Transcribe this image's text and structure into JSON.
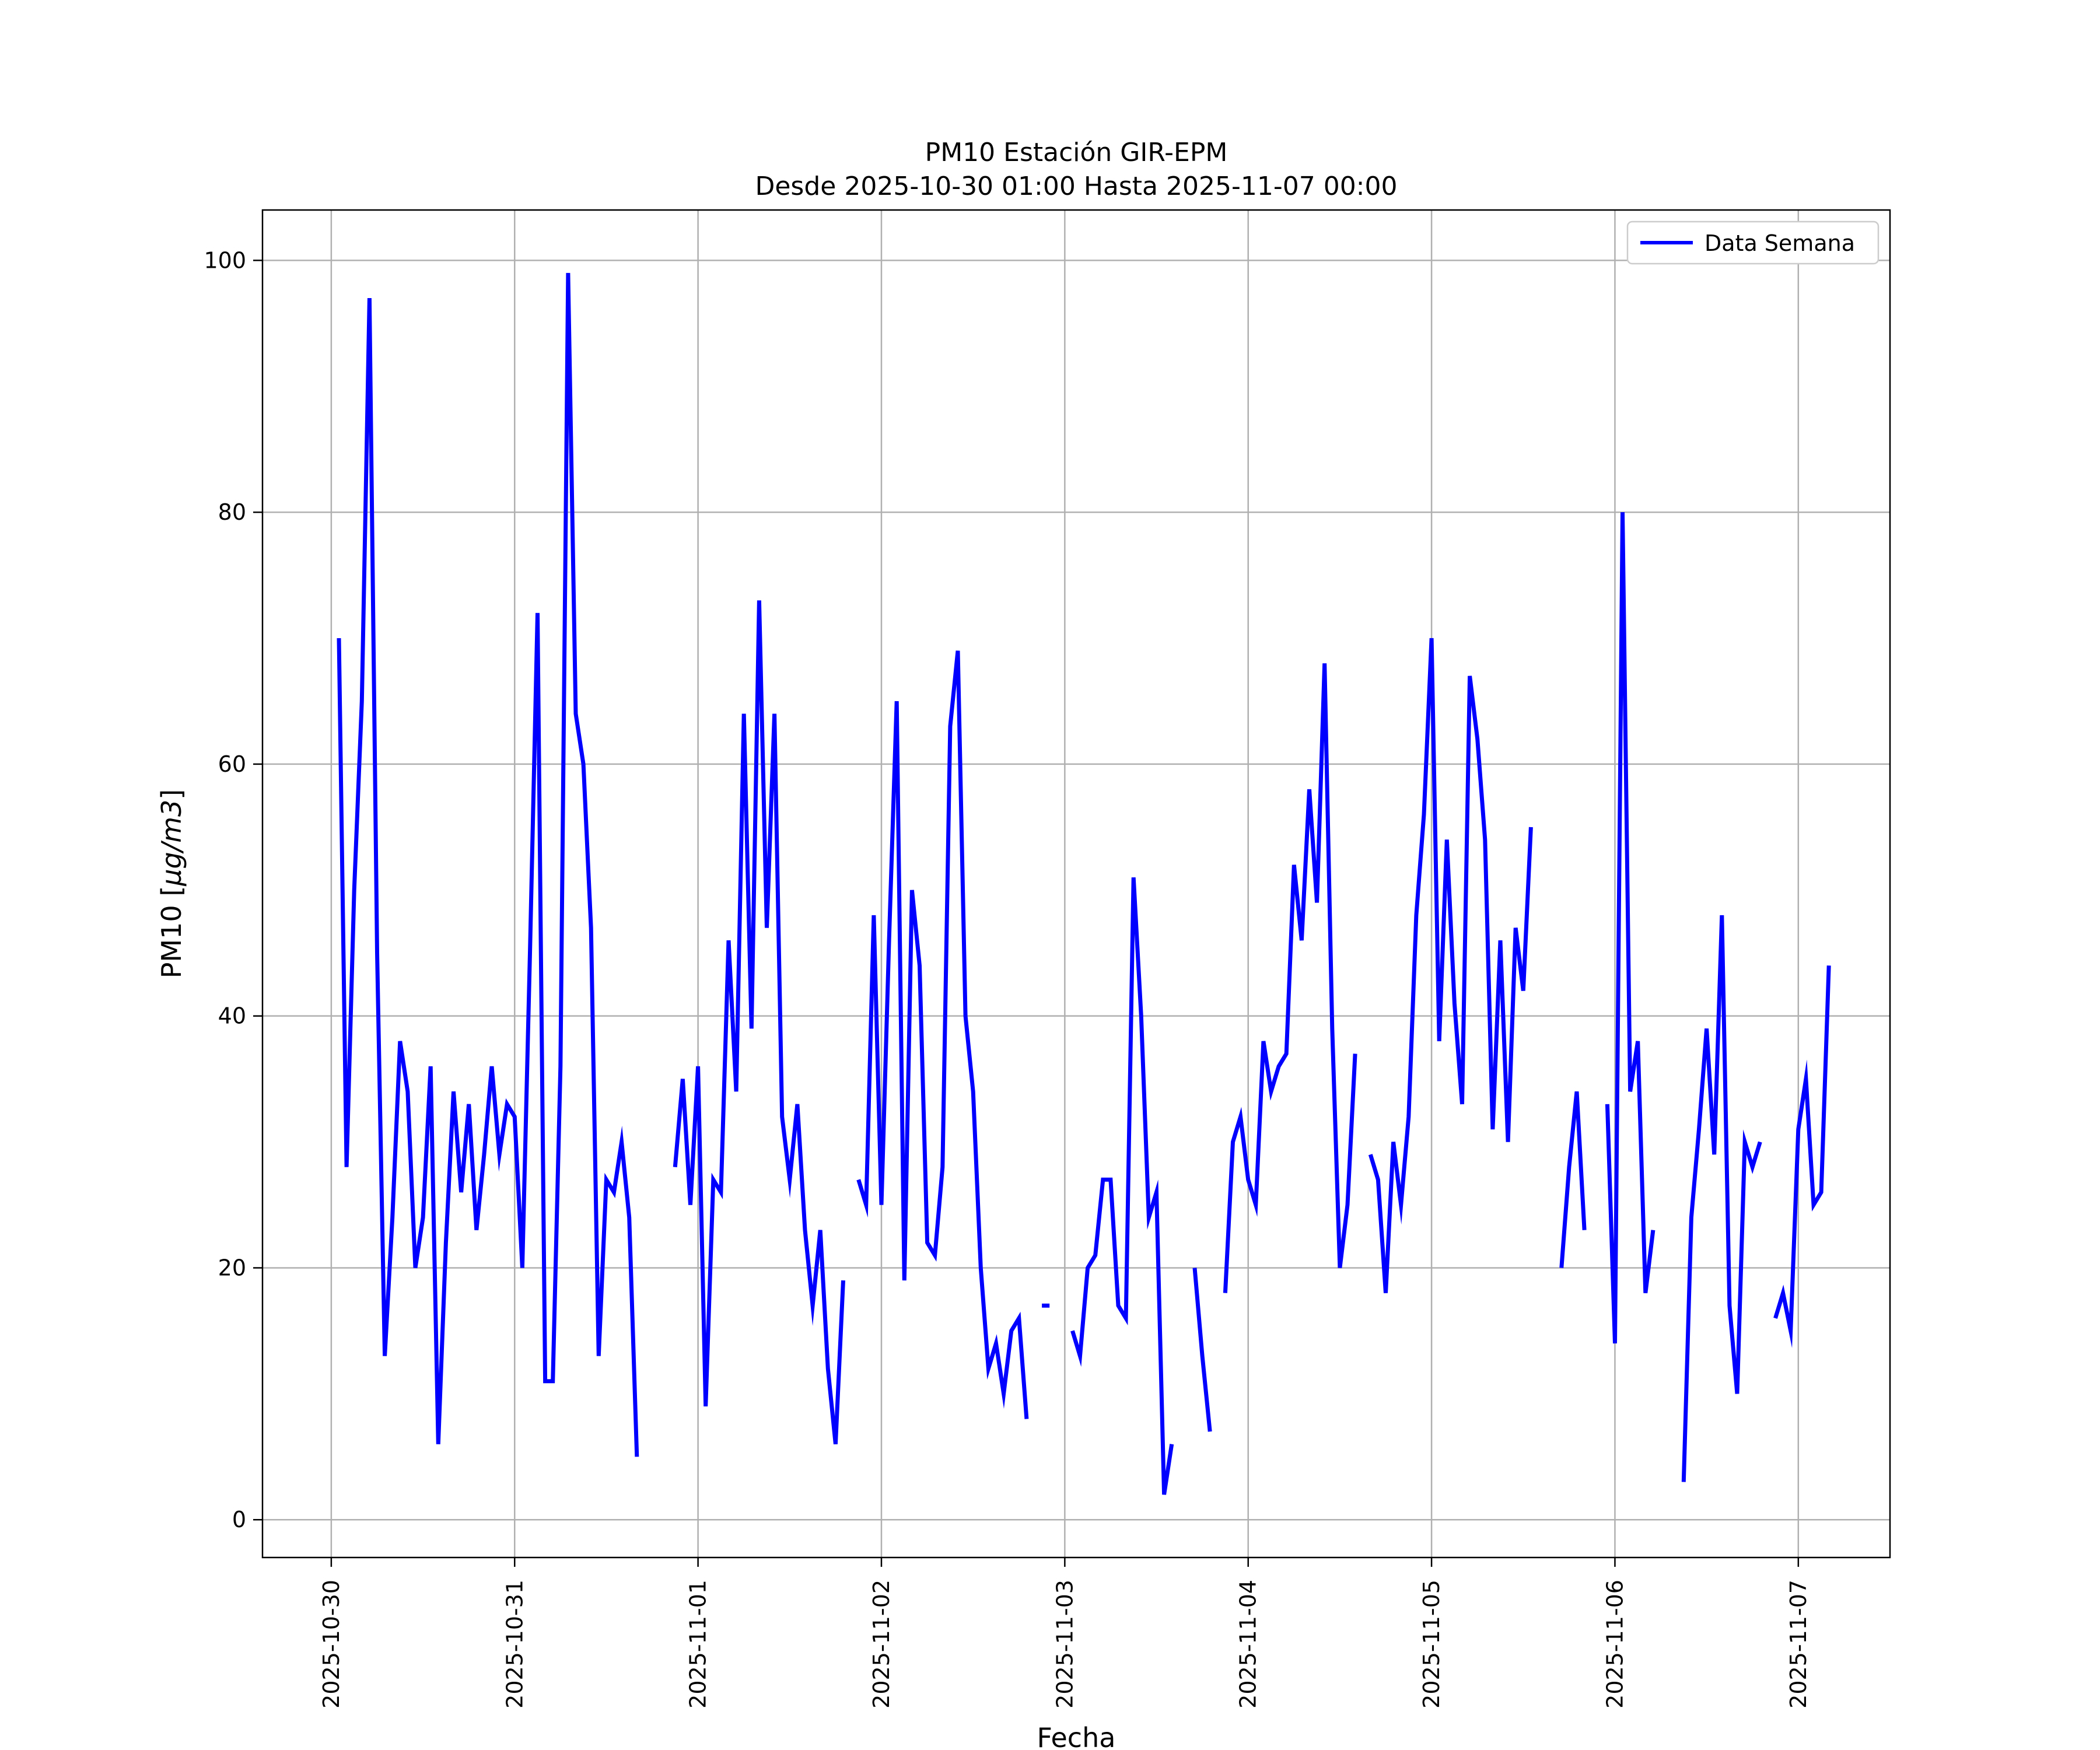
{
  "chart_data": {
    "type": "line",
    "title": "PM10 Estación GIR-EPM",
    "subtitle": "Desde 2025-10-30 01:00 Hasta 2025-11-07 00:00",
    "xlabel": "Fecha",
    "ylabel_prefix": "PM10 [",
    "ylabel_unit": "μg/m3",
    "ylabel_suffix": "]",
    "x_ticks": [
      "2025-10-30",
      "2025-10-31",
      "2025-11-01",
      "2025-11-02",
      "2025-11-03",
      "2025-11-04",
      "2025-11-05",
      "2025-11-06",
      "2025-11-07"
    ],
    "y_ticks": [
      0,
      20,
      40,
      60,
      80,
      100
    ],
    "xlim": [
      "2025-10-29 15:00",
      "2025-11-07 12:00"
    ],
    "ylim": [
      -3,
      104
    ],
    "grid": true,
    "legend_position": "top-right",
    "line_color": "#0000ff",
    "start": "2025-10-30 01:00",
    "series": [
      {
        "name": "Data Semana",
        "values": [
          70,
          28,
          50,
          65,
          97,
          45,
          13,
          24,
          38,
          34,
          20,
          24,
          36,
          6,
          22,
          34,
          26,
          33,
          23,
          29,
          36,
          29,
          33,
          32,
          20,
          45,
          72,
          11,
          11,
          36,
          99,
          64,
          60,
          47,
          13,
          27,
          26,
          30,
          24,
          5,
          null,
          null,
          null,
          null,
          28,
          35,
          25,
          36,
          9,
          27,
          26,
          46,
          34,
          64,
          39,
          73,
          47,
          64,
          32,
          27,
          33,
          23,
          17,
          23,
          12,
          6,
          19,
          null,
          27,
          25,
          48,
          25,
          46,
          65,
          19,
          50,
          44,
          22,
          21,
          28,
          63,
          69,
          40,
          34,
          20,
          12,
          14,
          10,
          15,
          16,
          8,
          null,
          17,
          17,
          null,
          null,
          15,
          13,
          20,
          21,
          27,
          27,
          17,
          16,
          51,
          40,
          24,
          26,
          2,
          6,
          null,
          null,
          20,
          13,
          7,
          null,
          18,
          30,
          32,
          27,
          25,
          38,
          34,
          36,
          37,
          52,
          46,
          58,
          49,
          68,
          39,
          20,
          25,
          37,
          null,
          29,
          27,
          18,
          30,
          25,
          32,
          48,
          56,
          70,
          38,
          54,
          41,
          33,
          67,
          62,
          54,
          31,
          46,
          30,
          47,
          42,
          55,
          null,
          null,
          null,
          20,
          28,
          34,
          23,
          null,
          null,
          33,
          14,
          80,
          34,
          38,
          18,
          23,
          null,
          null,
          null,
          3,
          24,
          31,
          39,
          29,
          48,
          17,
          10,
          30,
          28,
          30,
          null,
          16,
          18,
          15,
          31,
          35,
          25,
          26,
          44
        ]
      }
    ]
  }
}
